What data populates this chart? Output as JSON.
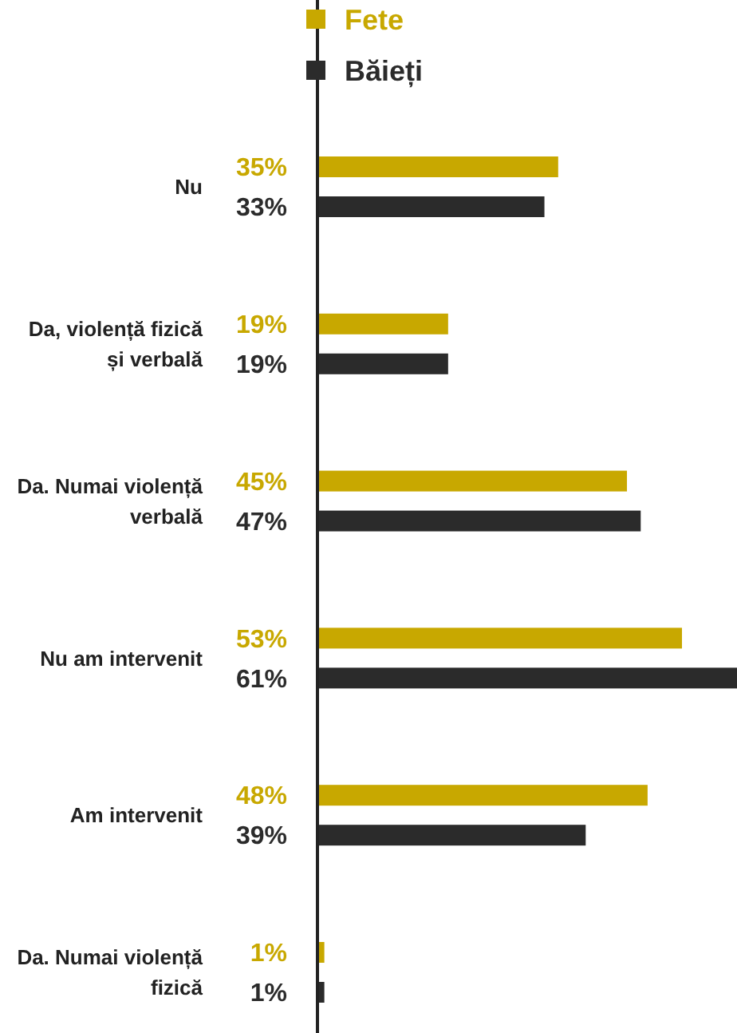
{
  "chart_data": {
    "type": "bar",
    "orientation": "horizontal",
    "categories": [
      "Nu",
      "Da, violență fizică și verbală",
      "Da. Numai violență verbală",
      "Nu am intervenit",
      "Am intervenit",
      "Da. Numai violență fizică"
    ],
    "series": [
      {
        "name": "Fete",
        "color": "#c8a800",
        "values": [
          35,
          19,
          45,
          53,
          48,
          1
        ],
        "value_labels": [
          "35%",
          "19%",
          "45%",
          "53%",
          "48%",
          "1%"
        ]
      },
      {
        "name": "Băieți",
        "color": "#2b2b2b",
        "values": [
          33,
          19,
          47,
          61,
          39,
          1
        ],
        "value_labels": [
          "33%",
          "19%",
          "47%",
          "61%",
          "39%",
          "1%"
        ]
      }
    ],
    "legend": "top",
    "tick_labels": "y"
  }
}
